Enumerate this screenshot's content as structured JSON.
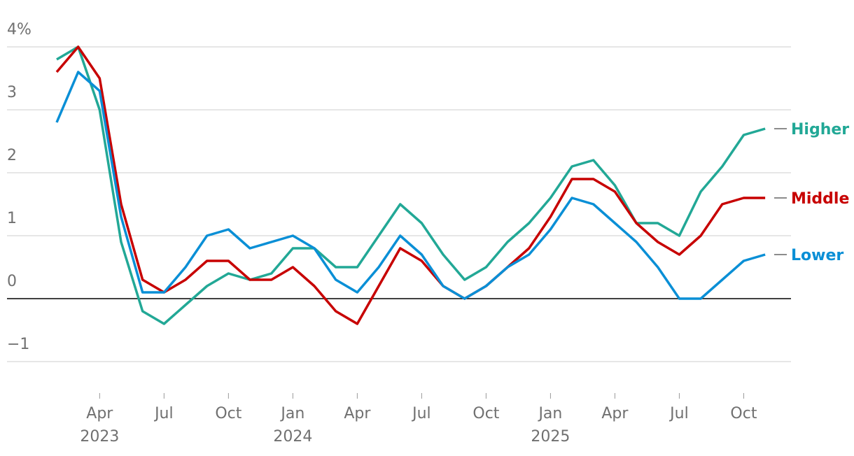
{
  "chart_data": {
    "type": "line",
    "categories": [
      null,
      null,
      "Apr",
      null,
      null,
      "Jul",
      null,
      null,
      "Oct",
      null,
      null,
      "Jan",
      null,
      null,
      "Apr",
      null,
      null,
      "Jul",
      null,
      null,
      "Oct",
      null,
      null,
      "Jan",
      null,
      null,
      "Apr",
      null,
      null,
      "Jul",
      null,
      null,
      "Oct",
      null
    ],
    "category_years": [
      null,
      null,
      "2023",
      null,
      null,
      null,
      null,
      null,
      null,
      null,
      null,
      "2024",
      null,
      null,
      null,
      null,
      null,
      null,
      null,
      null,
      null,
      null,
      null,
      "2025",
      null,
      null,
      null,
      null,
      null,
      null,
      null,
      null,
      null,
      null
    ],
    "series": [
      {
        "name": "Higher",
        "color": "#22a896",
        "values": [
          3.8,
          4.0,
          3.0,
          0.9,
          -0.2,
          -0.4,
          -0.1,
          0.2,
          0.4,
          0.3,
          0.4,
          0.8,
          0.8,
          0.5,
          0.5,
          1.0,
          1.5,
          1.2,
          0.7,
          0.3,
          0.5,
          0.9,
          1.2,
          1.6,
          2.1,
          2.2,
          1.8,
          1.2,
          1.2,
          1.0,
          1.7,
          2.1,
          2.6,
          2.7
        ]
      },
      {
        "name": "Middle",
        "color": "#c70000",
        "values": [
          3.6,
          4.0,
          3.5,
          1.5,
          0.3,
          0.1,
          0.3,
          0.6,
          0.6,
          0.3,
          0.3,
          0.5,
          0.2,
          -0.2,
          -0.4,
          0.2,
          0.8,
          0.6,
          0.2,
          0.0,
          0.2,
          0.5,
          0.8,
          1.3,
          1.9,
          1.9,
          1.7,
          1.2,
          0.9,
          0.7,
          1.0,
          1.5,
          1.6,
          1.6
        ]
      },
      {
        "name": "Lower",
        "color": "#0a8fd6",
        "values": [
          2.8,
          3.6,
          3.3,
          1.3,
          0.1,
          0.1,
          0.5,
          1.0,
          1.1,
          0.8,
          0.9,
          1.0,
          0.8,
          0.3,
          0.1,
          0.5,
          1.0,
          0.7,
          0.2,
          0.0,
          0.2,
          0.5,
          0.7,
          1.1,
          1.6,
          1.5,
          1.2,
          0.9,
          0.5,
          0.0,
          0.0,
          0.3,
          0.6,
          0.7
        ]
      }
    ],
    "ylim": [
      -1,
      4
    ],
    "yticks": [
      {
        "value": -1,
        "label": "−1"
      },
      0,
      1,
      2,
      3,
      {
        "value": 4,
        "label": "4%"
      }
    ],
    "grid": true
  }
}
